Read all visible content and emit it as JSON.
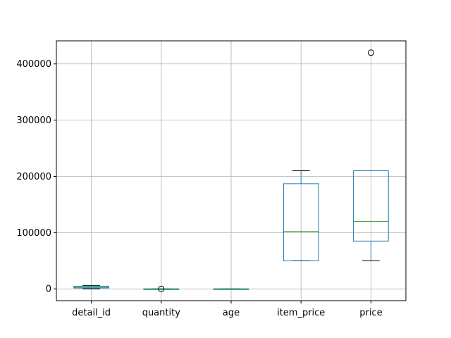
{
  "chart_data": {
    "type": "boxplot",
    "title": "",
    "xlabel": "",
    "ylabel": "",
    "ylim": [
      -21000,
      441000
    ],
    "yticks": [
      0,
      100000,
      200000,
      300000,
      400000
    ],
    "ytick_labels": [
      "0",
      "100000",
      "200000",
      "300000",
      "400000"
    ],
    "grid": true,
    "categories": [
      "detail_id",
      "quantity",
      "age",
      "item_price",
      "price"
    ],
    "boxes": [
      {
        "label": "detail_id",
        "whisker_low": 100,
        "q1": 1500,
        "median": 3000,
        "q3": 4800,
        "whisker_high": 6000,
        "outliers": []
      },
      {
        "label": "quantity",
        "whisker_low": 1,
        "q1": 1,
        "median": 1,
        "q3": 1,
        "whisker_high": 1,
        "outliers": [
          2
        ]
      },
      {
        "label": "age",
        "whisker_low": 20,
        "q1": 25,
        "median": 30,
        "q3": 40,
        "whisker_high": 50,
        "outliers": []
      },
      {
        "label": "item_price",
        "whisker_low": 50000,
        "q1": 50000,
        "median": 102000,
        "q3": 187000,
        "whisker_high": 210000,
        "outliers": []
      },
      {
        "label": "price",
        "whisker_low": 50000,
        "q1": 85000,
        "median": 120000,
        "q3": 210000,
        "whisker_high": 210000,
        "outliers": [
          420000
        ]
      }
    ],
    "colors": {
      "box": "#1f77b4",
      "median": "#2ca02c",
      "whisker_cap": "#000000",
      "grid": "#b0b0b0",
      "outlier": "#000000"
    }
  }
}
